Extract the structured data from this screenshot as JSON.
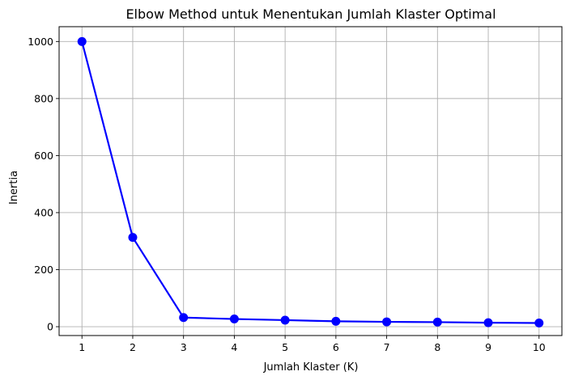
{
  "chart_data": {
    "type": "line",
    "title": "Elbow Method untuk Menentukan Jumlah Klaster Optimal",
    "xlabel": "Jumlah Klaster (K)",
    "ylabel": "Inertia",
    "x": [
      1,
      2,
      3,
      4,
      5,
      6,
      7,
      8,
      9,
      10
    ],
    "series": [
      {
        "values": [
          1000,
          313,
          32,
          27,
          23,
          19,
          17,
          16,
          14,
          13
        ],
        "color": "#0000ff",
        "marker": "circle"
      }
    ],
    "xlim": [
      0.55,
      10.45
    ],
    "ylim": [
      -31,
      1052
    ],
    "xticks": [
      1,
      2,
      3,
      4,
      5,
      6,
      7,
      8,
      9,
      10
    ],
    "yticks": [
      0,
      200,
      400,
      600,
      800,
      1000
    ],
    "grid": true
  }
}
